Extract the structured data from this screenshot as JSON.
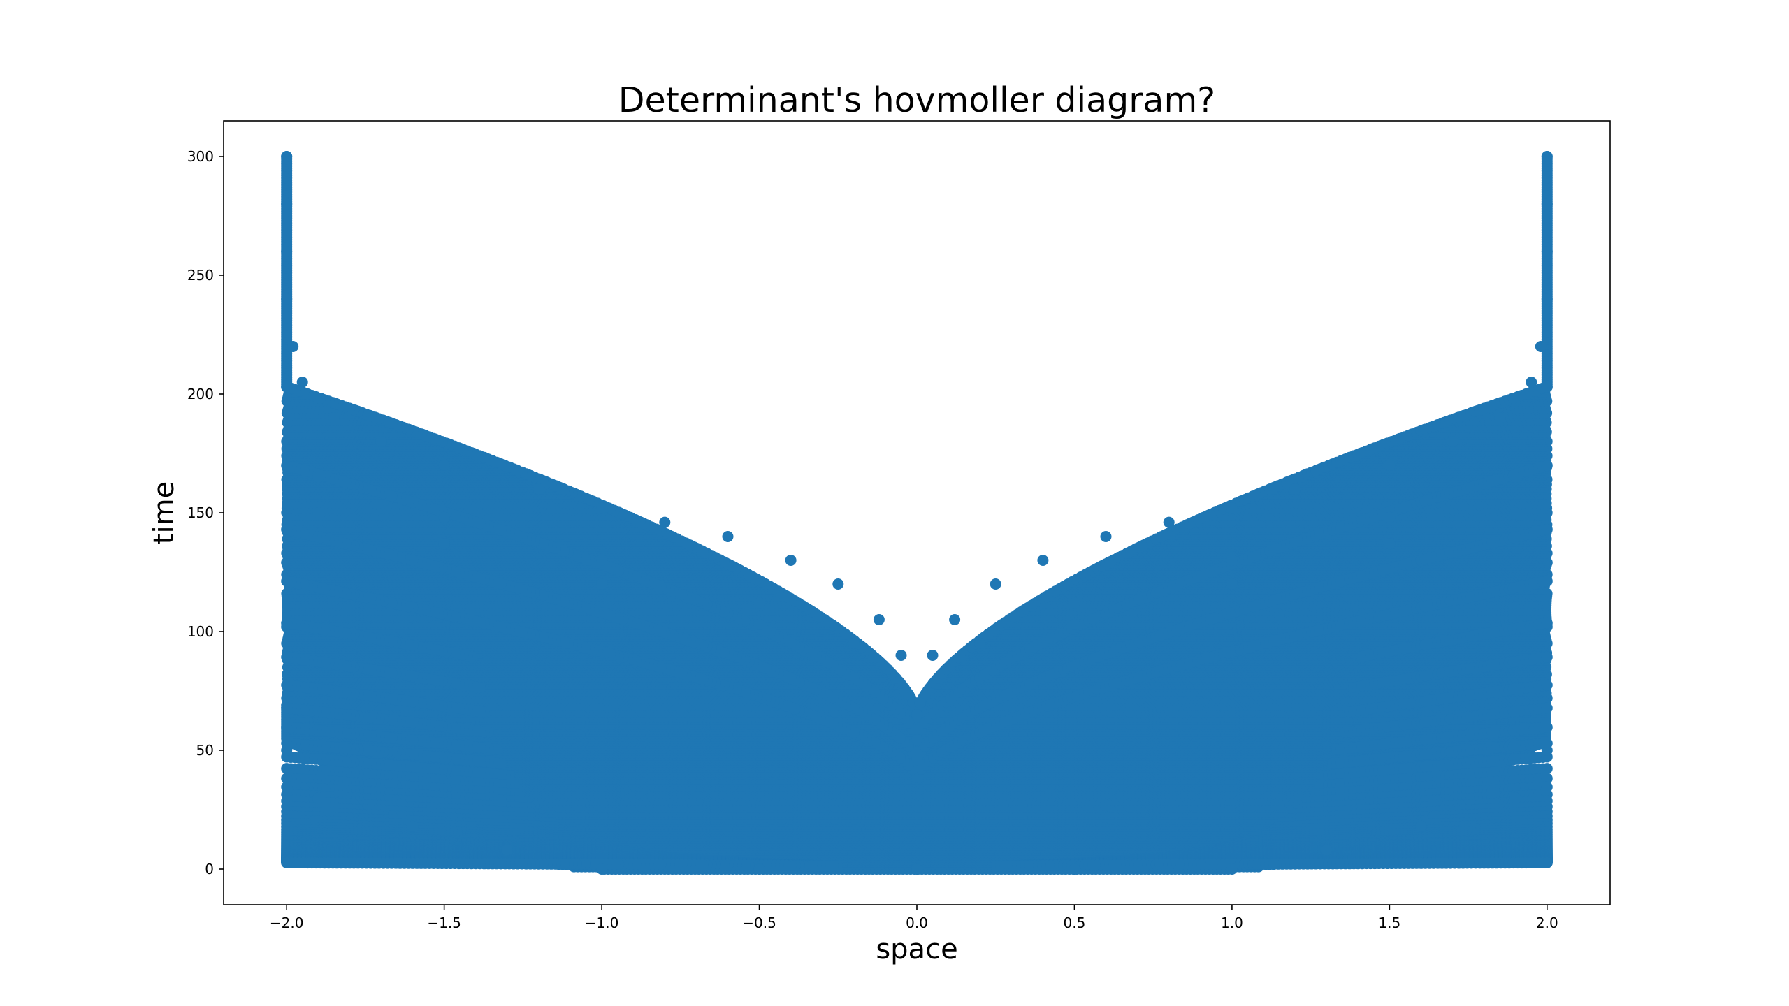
{
  "chart_data": {
    "type": "scatter",
    "title": "Determinant's hovmoller diagram?",
    "xlabel": "space",
    "ylabel": "time",
    "xlim": [
      -2.2,
      2.2
    ],
    "ylim": [
      -15,
      315
    ],
    "xticks": [
      -2.0,
      -1.5,
      -1.0,
      -0.5,
      0.0,
      0.5,
      1.0,
      1.5,
      2.0
    ],
    "xtick_labels": [
      "−2.0",
      "−1.5",
      "−1.0",
      "−0.5",
      "0.0",
      "0.5",
      "1.0",
      "1.5",
      "2.0"
    ],
    "yticks": [
      0,
      50,
      100,
      150,
      200,
      250,
      300
    ],
    "ytick_labels": [
      "0",
      "50",
      "100",
      "150",
      "200",
      "250",
      "300"
    ],
    "grid": false,
    "legend": "none",
    "marker_color": "#1f77b4",
    "series": [
      {
        "points": [
          [
            -2.0,
            300
          ],
          [
            -2.0,
            280
          ],
          [
            -2.0,
            260
          ],
          [
            -2.0,
            240
          ],
          [
            -1.98,
            220
          ],
          [
            -1.95,
            205
          ],
          [
            -1.85,
            190
          ],
          [
            -1.7,
            180
          ],
          [
            -1.5,
            170
          ],
          [
            -1.2,
            160
          ],
          [
            -1.0,
            152
          ],
          [
            -0.8,
            146
          ],
          [
            -0.6,
            140
          ],
          [
            -0.4,
            130
          ],
          [
            -0.25,
            120
          ],
          [
            -0.12,
            105
          ],
          [
            -0.05,
            90
          ],
          [
            -0.01,
            70
          ],
          [
            0.0,
            65
          ],
          [
            0.01,
            70
          ],
          [
            0.05,
            90
          ],
          [
            0.12,
            105
          ],
          [
            0.25,
            120
          ],
          [
            0.4,
            130
          ],
          [
            0.6,
            140
          ],
          [
            0.8,
            146
          ],
          [
            1.0,
            152
          ],
          [
            1.2,
            160
          ],
          [
            1.5,
            170
          ],
          [
            1.7,
            180
          ],
          [
            1.85,
            190
          ],
          [
            1.95,
            205
          ],
          [
            1.98,
            220
          ],
          [
            2.0,
            240
          ],
          [
            2.0,
            260
          ],
          [
            2.0,
            280
          ],
          [
            2.0,
            300
          ],
          [
            -1.9,
            165
          ],
          [
            -1.5,
            148
          ],
          [
            -1.0,
            130
          ],
          [
            -0.5,
            112
          ],
          [
            -0.2,
            95
          ],
          [
            0.2,
            95
          ],
          [
            0.5,
            112
          ],
          [
            1.0,
            130
          ],
          [
            1.5,
            148
          ],
          [
            1.9,
            165
          ],
          [
            -1.9,
            150
          ],
          [
            -1.5,
            137
          ],
          [
            -1.0,
            120
          ],
          [
            -0.5,
            103
          ],
          [
            0.5,
            103
          ],
          [
            1.0,
            120
          ],
          [
            1.5,
            137
          ],
          [
            1.9,
            150
          ],
          [
            -2.0,
            50
          ],
          [
            -1.9,
            30
          ],
          [
            -1.6,
            18
          ],
          [
            -1.3,
            8
          ],
          [
            -1.0,
            0
          ],
          [
            -0.5,
            0
          ],
          [
            0.0,
            0
          ],
          [
            0.5,
            0
          ],
          [
            1.0,
            0
          ],
          [
            1.3,
            8
          ],
          [
            1.6,
            18
          ],
          [
            1.9,
            30
          ],
          [
            2.0,
            50
          ]
        ]
      }
    ]
  }
}
